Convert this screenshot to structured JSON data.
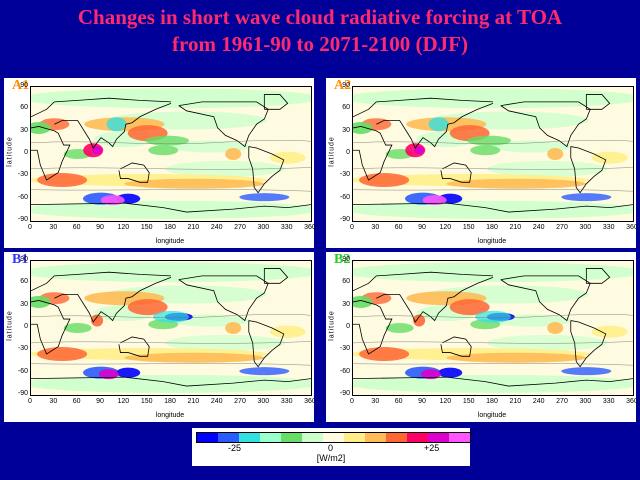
{
  "title_line1": "Changes in short wave cloud radiative forcing at TOA",
  "title_line2": "from 1961-90 to 2071-2100 (DJF)",
  "panels": [
    {
      "id": "A1",
      "label": "A1",
      "label_color": "#ff8c00"
    },
    {
      "id": "A2",
      "label": "A2",
      "label_color": "#ff8c00"
    },
    {
      "id": "B1",
      "label": "B1",
      "label_color": "#3333ff"
    },
    {
      "id": "B2",
      "label": "B2",
      "label_color": "#22cc22"
    }
  ],
  "axes": {
    "ylabel": "latitude",
    "xlabel": "longitude",
    "yticks": [
      "90",
      "60",
      "30",
      "0",
      "-30",
      "-60",
      "-90"
    ],
    "xticks": [
      "0",
      "30",
      "60",
      "90",
      "120",
      "150",
      "180",
      "210",
      "240",
      "270",
      "300",
      "330",
      "360"
    ]
  },
  "colorbar": {
    "colors": [
      "#0000ff",
      "#2a5bff",
      "#33e0e0",
      "#99ffcc",
      "#66dd66",
      "#ccffcc",
      "#fffbe0",
      "#ffee88",
      "#ffbb55",
      "#ff6633",
      "#ff0066",
      "#dd00cc",
      "#ff55ff"
    ],
    "labels": [
      "-25",
      "0",
      "+25"
    ],
    "unit": "[W/m2]"
  },
  "colors": {
    "background": "#000099",
    "title": "#ff2a6d"
  }
}
